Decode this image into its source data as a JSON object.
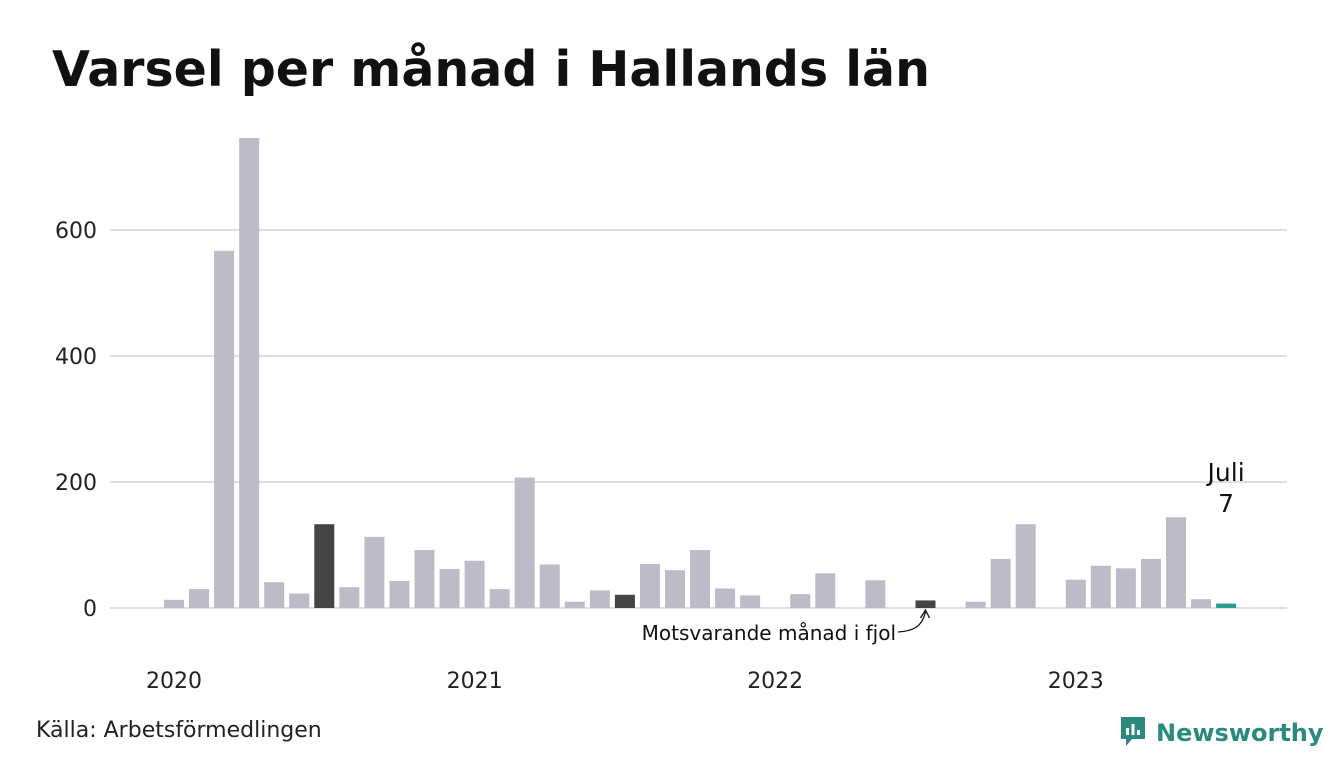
{
  "title": "Varsel per månad i Hallands län",
  "source": "Källa: Arbetsförmedlingen",
  "brand": {
    "name": "Newsworthy",
    "icon": "newsworthy-logo-icon",
    "color": "#2a8a7e"
  },
  "colors": {
    "bar": "#bebbc9",
    "previous_year": "#444444",
    "current": "#2a9d8f",
    "grid": "#dedede"
  },
  "chart_data": {
    "type": "bar",
    "x_tick_labels": [
      "2020",
      "2021",
      "2022",
      "2023"
    ],
    "y_ticks": [
      0,
      200,
      400,
      600
    ],
    "ylim": [
      0,
      750
    ],
    "grid": true,
    "months": [
      "2020-01",
      "2020-02",
      "2020-03",
      "2020-04",
      "2020-05",
      "2020-06",
      "2020-07",
      "2020-08",
      "2020-09",
      "2020-10",
      "2020-11",
      "2020-12",
      "2021-01",
      "2021-02",
      "2021-03",
      "2021-04",
      "2021-05",
      "2021-06",
      "2021-07",
      "2021-08",
      "2021-09",
      "2021-10",
      "2021-11",
      "2021-12",
      "2022-01",
      "2022-02",
      "2022-03",
      "2022-04",
      "2022-05",
      "2022-06",
      "2022-07",
      "2022-08",
      "2022-09",
      "2022-10",
      "2022-11",
      "2022-12",
      "2023-01",
      "2023-02",
      "2023-03",
      "2023-04",
      "2023-05",
      "2023-06",
      "2023-07"
    ],
    "values": [
      13,
      30,
      567,
      746,
      41,
      23,
      133,
      33,
      113,
      43,
      92,
      62,
      75,
      30,
      207,
      69,
      10,
      28,
      21,
      70,
      60,
      92,
      31,
      20,
      0,
      22,
      55,
      0,
      44,
      0,
      12,
      0,
      10,
      78,
      133,
      0,
      45,
      67,
      63,
      78,
      144,
      14,
      7
    ],
    "highlight_previous_year_index": [
      6,
      18,
      30
    ],
    "current_index": 42,
    "current_label": {
      "month": "Juli",
      "value": "7"
    },
    "annotation": "Motsvarande månad i fjol"
  }
}
